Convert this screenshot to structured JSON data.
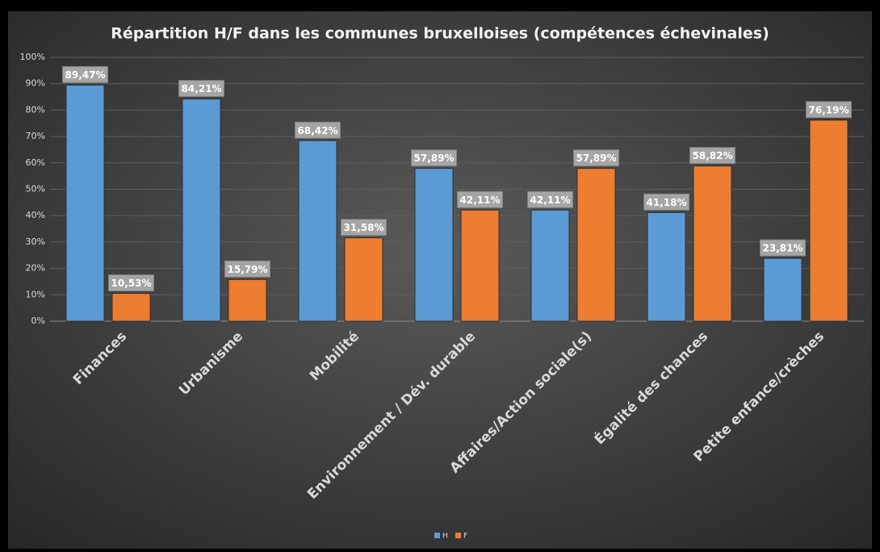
{
  "chart_data": {
    "type": "bar",
    "title": "Répartition H/F dans les communes bruxelloises (compétences échevinales)",
    "categories": [
      "Finances",
      "Urbanisme",
      "Mobilité",
      "Environnement / Dév. durable",
      "Affaires/Action sociale(s)",
      "Égalité des chances",
      "Petite enfance/crèches"
    ],
    "series": [
      {
        "name": "H",
        "color": "#5b9bd5",
        "values": [
          89.47,
          84.21,
          68.42,
          57.89,
          42.11,
          41.18,
          23.81
        ],
        "value_labels": [
          "89,47%",
          "84,21%",
          "68,42%",
          "57,89%",
          "42,11%",
          "41,18%",
          "23,81%"
        ]
      },
      {
        "name": "F",
        "color": "#ed7d31",
        "values": [
          10.53,
          15.79,
          31.58,
          42.11,
          57.89,
          58.82,
          76.19
        ],
        "value_labels": [
          "10,53%",
          "15,79%",
          "31,58%",
          "42,11%",
          "57,89%",
          "58,82%",
          "76,19%"
        ]
      }
    ],
    "ylim": [
      0,
      100
    ],
    "yticks": [
      {
        "value": 0,
        "label": "0%"
      },
      {
        "value": 10,
        "label": "10%"
      },
      {
        "value": 20,
        "label": "20%"
      },
      {
        "value": 30,
        "label": "30%"
      },
      {
        "value": 40,
        "label": "40%"
      },
      {
        "value": 50,
        "label": "50%"
      },
      {
        "value": 60,
        "label": "60%"
      },
      {
        "value": 70,
        "label": "70%"
      },
      {
        "value": 80,
        "label": "80%"
      },
      {
        "value": 90,
        "label": "90%"
      },
      {
        "value": 100,
        "label": "100%"
      }
    ],
    "grid": true,
    "legend": "bottom"
  }
}
